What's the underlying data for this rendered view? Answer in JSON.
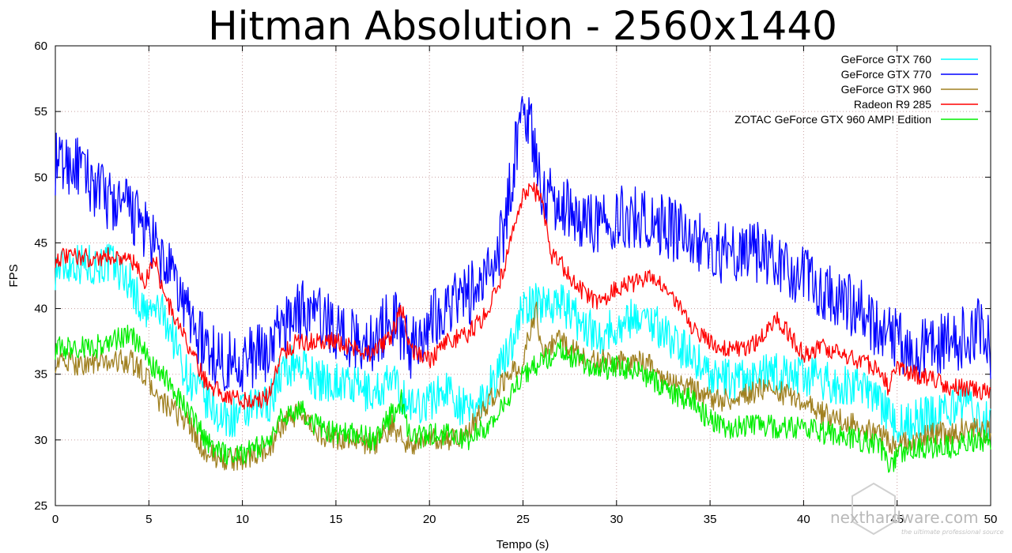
{
  "chart_data": {
    "type": "line",
    "title": "Hitman Absolution - 2560x1440",
    "xlabel": "Tempo (s)",
    "ylabel": "FPS",
    "xlim": [
      0,
      50
    ],
    "ylim": [
      25,
      60
    ],
    "xticks": [
      0,
      5,
      10,
      15,
      20,
      25,
      30,
      35,
      40,
      45,
      50
    ],
    "yticks": [
      25,
      30,
      35,
      40,
      45,
      50,
      55,
      60
    ],
    "grid": true,
    "legend_position": "top-right",
    "series": [
      {
        "name": "GeForce GTX 760",
        "color": "#00ffff",
        "noise": 1.6,
        "points": [
          [
            0,
            43
          ],
          [
            1,
            43.5
          ],
          [
            2,
            43.3
          ],
          [
            3,
            43.5
          ],
          [
            4,
            42
          ],
          [
            4.8,
            39.5
          ],
          [
            5.5,
            40
          ],
          [
            6,
            39
          ],
          [
            6.5,
            37
          ],
          [
            7,
            35
          ],
          [
            8,
            33
          ],
          [
            9,
            31.5
          ],
          [
            10,
            32
          ],
          [
            11,
            32.5
          ],
          [
            11.5,
            33
          ],
          [
            12,
            35
          ],
          [
            13,
            36
          ],
          [
            14,
            34.5
          ],
          [
            15,
            34.5
          ],
          [
            16,
            34
          ],
          [
            17,
            33.5
          ],
          [
            18,
            34.5
          ],
          [
            19,
            32.5
          ],
          [
            20,
            33
          ],
          [
            21,
            34
          ],
          [
            22,
            32
          ],
          [
            23,
            33.5
          ],
          [
            24,
            36
          ],
          [
            25,
            40
          ],
          [
            26,
            40.5
          ],
          [
            27,
            40.5
          ],
          [
            28,
            39
          ],
          [
            29,
            38
          ],
          [
            30,
            38.5
          ],
          [
            31,
            39.5
          ],
          [
            32,
            39
          ],
          [
            33,
            37.5
          ],
          [
            34,
            36.5
          ],
          [
            35,
            35
          ],
          [
            36,
            34.5
          ],
          [
            37,
            34.5
          ],
          [
            38,
            35
          ],
          [
            39,
            35
          ],
          [
            40,
            35
          ],
          [
            41,
            34.5
          ],
          [
            42,
            34
          ],
          [
            43,
            34
          ],
          [
            44,
            33
          ],
          [
            44.5,
            32
          ],
          [
            45,
            31
          ],
          [
            46,
            31.5
          ],
          [
            47,
            32
          ],
          [
            48,
            32.5
          ],
          [
            49,
            32.5
          ],
          [
            50,
            31
          ]
        ]
      },
      {
        "name": "GeForce GTX 770",
        "color": "#0000ff",
        "noise": 2.4,
        "points": [
          [
            0,
            51
          ],
          [
            1,
            51
          ],
          [
            2,
            49.5
          ],
          [
            3,
            48
          ],
          [
            4,
            47.5
          ],
          [
            4.8,
            46
          ],
          [
            5.5,
            44
          ],
          [
            6,
            43
          ],
          [
            7,
            40
          ],
          [
            8,
            37
          ],
          [
            9,
            36
          ],
          [
            10,
            36
          ],
          [
            11,
            36.5
          ],
          [
            11.5,
            37
          ],
          [
            12,
            38.5
          ],
          [
            13,
            40
          ],
          [
            14,
            39.5
          ],
          [
            15,
            38.5
          ],
          [
            16,
            37.5
          ],
          [
            17,
            37.5
          ],
          [
            18,
            39.5
          ],
          [
            19,
            37
          ],
          [
            20,
            39
          ],
          [
            21,
            40.5
          ],
          [
            22,
            41
          ],
          [
            23,
            42
          ],
          [
            24,
            46
          ],
          [
            24.8,
            54
          ],
          [
            25.3,
            55
          ],
          [
            25.7,
            51
          ],
          [
            26,
            49
          ],
          [
            27,
            48
          ],
          [
            28,
            47
          ],
          [
            29,
            46.5
          ],
          [
            30,
            47
          ],
          [
            31,
            47
          ],
          [
            32,
            46.5
          ],
          [
            33,
            46
          ],
          [
            34,
            45.5
          ],
          [
            35,
            44.5
          ],
          [
            36,
            44
          ],
          [
            37,
            44.5
          ],
          [
            38,
            44
          ],
          [
            39,
            43
          ],
          [
            40,
            42.5
          ],
          [
            41,
            41.5
          ],
          [
            42,
            40.5
          ],
          [
            43,
            40
          ],
          [
            44,
            38.5
          ],
          [
            45,
            37.5
          ],
          [
            46,
            37
          ],
          [
            47,
            37
          ],
          [
            48,
            37.5
          ],
          [
            49,
            38
          ],
          [
            49.7,
            39
          ],
          [
            50,
            36
          ]
        ]
      },
      {
        "name": "GeForce GTX 960",
        "color": "#a08020",
        "noise": 0.9,
        "points": [
          [
            0,
            36
          ],
          [
            1,
            35.8
          ],
          [
            2,
            35.8
          ],
          [
            3,
            36
          ],
          [
            4,
            36
          ],
          [
            4.8,
            35
          ],
          [
            5.5,
            33
          ],
          [
            6,
            32.5
          ],
          [
            7,
            31.5
          ],
          [
            8,
            29
          ],
          [
            9,
            28.5
          ],
          [
            10,
            28.5
          ],
          [
            11,
            29
          ],
          [
            11.5,
            29.5
          ],
          [
            12,
            31
          ],
          [
            13,
            32
          ],
          [
            14,
            30.5
          ],
          [
            15,
            30
          ],
          [
            16,
            30
          ],
          [
            17,
            29.5
          ],
          [
            18,
            31
          ],
          [
            19,
            29.5
          ],
          [
            20,
            30
          ],
          [
            21,
            30
          ],
          [
            22,
            30.5
          ],
          [
            23,
            32.5
          ],
          [
            24,
            34.5
          ],
          [
            25,
            36
          ],
          [
            25.7,
            40
          ],
          [
            26,
            37
          ],
          [
            27,
            37.5
          ],
          [
            28,
            36.5
          ],
          [
            29,
            36
          ],
          [
            30,
            36
          ],
          [
            31,
            36
          ],
          [
            32,
            35.5
          ],
          [
            33,
            34.5
          ],
          [
            34,
            34
          ],
          [
            35,
            33
          ],
          [
            36,
            33
          ],
          [
            37,
            33.5
          ],
          [
            38,
            34
          ],
          [
            39,
            33.5
          ],
          [
            40,
            33
          ],
          [
            41,
            32
          ],
          [
            42,
            31.5
          ],
          [
            43,
            31
          ],
          [
            44,
            30.5
          ],
          [
            45,
            29.5
          ],
          [
            46,
            30
          ],
          [
            47,
            30.5
          ],
          [
            48,
            30.5
          ],
          [
            49,
            31
          ],
          [
            50,
            30.5
          ]
        ]
      },
      {
        "name": "Radeon R9 285",
        "color": "#ff0000",
        "noise": 0.7,
        "points": [
          [
            0,
            43.8
          ],
          [
            1,
            44
          ],
          [
            2,
            43.8
          ],
          [
            3,
            44
          ],
          [
            4,
            43.8
          ],
          [
            4.8,
            42
          ],
          [
            5.3,
            44
          ],
          [
            5.8,
            41
          ],
          [
            6.5,
            39
          ],
          [
            7,
            37.5
          ],
          [
            7.5,
            36
          ],
          [
            8,
            34.5
          ],
          [
            9,
            33.5
          ],
          [
            10,
            33
          ],
          [
            11,
            33
          ],
          [
            11.5,
            33.5
          ],
          [
            12,
            36.5
          ],
          [
            13,
            37.5
          ],
          [
            14,
            37.5
          ],
          [
            15,
            37.5
          ],
          [
            16,
            37
          ],
          [
            17,
            36.5
          ],
          [
            18,
            38
          ],
          [
            18.5,
            40
          ],
          [
            19,
            37
          ],
          [
            20,
            36
          ],
          [
            21,
            37.5
          ],
          [
            22,
            38
          ],
          [
            23,
            39.5
          ],
          [
            24,
            43
          ],
          [
            24.5,
            46
          ],
          [
            25,
            48.5
          ],
          [
            25.5,
            49
          ],
          [
            26,
            48.5
          ],
          [
            26.5,
            44
          ],
          [
            27,
            43.5
          ],
          [
            28,
            41.5
          ],
          [
            29,
            40.5
          ],
          [
            30,
            41.5
          ],
          [
            31,
            42
          ],
          [
            32,
            42.5
          ],
          [
            33,
            41
          ],
          [
            34,
            38.5
          ],
          [
            35,
            37.5
          ],
          [
            36,
            37
          ],
          [
            37,
            37
          ],
          [
            38,
            38
          ],
          [
            38.5,
            39.5
          ],
          [
            39,
            38.5
          ],
          [
            40,
            36.5
          ],
          [
            41,
            37
          ],
          [
            42,
            36.5
          ],
          [
            43,
            36
          ],
          [
            44,
            35.5
          ],
          [
            44.5,
            34
          ],
          [
            45,
            35.5
          ],
          [
            46,
            35
          ],
          [
            47,
            34.5
          ],
          [
            48,
            34
          ],
          [
            49,
            34
          ],
          [
            50,
            33.5
          ]
        ]
      },
      {
        "name": "ZOTAC GeForce GTX 960 AMP! Edition",
        "color": "#00ee00",
        "noise": 0.9,
        "points": [
          [
            0,
            37
          ],
          [
            1,
            37
          ],
          [
            2,
            37
          ],
          [
            3,
            37.5
          ],
          [
            4,
            38
          ],
          [
            4.8,
            36.5
          ],
          [
            5.5,
            35
          ],
          [
            6,
            34.5
          ],
          [
            7,
            32.5
          ],
          [
            8,
            30
          ],
          [
            9,
            29
          ],
          [
            10,
            29
          ],
          [
            11,
            29.5
          ],
          [
            11.5,
            30
          ],
          [
            12,
            31.5
          ],
          [
            13,
            32.5
          ],
          [
            14,
            31
          ],
          [
            15,
            30.5
          ],
          [
            16,
            30.5
          ],
          [
            17,
            30
          ],
          [
            18,
            32
          ],
          [
            18.5,
            33
          ],
          [
            19,
            30
          ],
          [
            20,
            30.5
          ],
          [
            21,
            30.5
          ],
          [
            22,
            30
          ],
          [
            23,
            31
          ],
          [
            24,
            32.5
          ],
          [
            25,
            35
          ],
          [
            26,
            36
          ],
          [
            27,
            37
          ],
          [
            28,
            36
          ],
          [
            29,
            35.5
          ],
          [
            30,
            35.5
          ],
          [
            31,
            35.5
          ],
          [
            32,
            34.5
          ],
          [
            33,
            33.5
          ],
          [
            34,
            33
          ],
          [
            35,
            31.5
          ],
          [
            36,
            31
          ],
          [
            37,
            31
          ],
          [
            38,
            31
          ],
          [
            39,
            31
          ],
          [
            40,
            31
          ],
          [
            41,
            30.5
          ],
          [
            42,
            30.5
          ],
          [
            43,
            30
          ],
          [
            44,
            29.5
          ],
          [
            44.7,
            28
          ],
          [
            45,
            29
          ],
          [
            46,
            29.5
          ],
          [
            47,
            29.5
          ],
          [
            48,
            29.5
          ],
          [
            49,
            30
          ],
          [
            50,
            30
          ]
        ]
      }
    ]
  },
  "watermark": {
    "text": "nexthardware.com",
    "subtitle": "the ultimate professional source"
  }
}
